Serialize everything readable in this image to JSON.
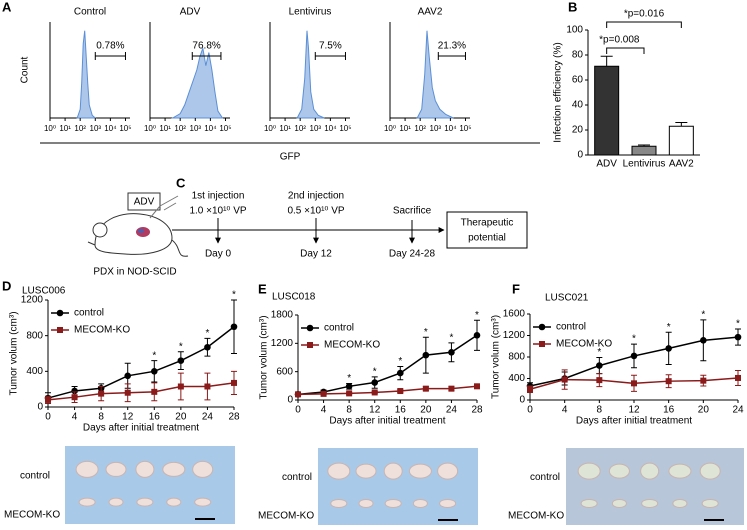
{
  "panel_labels": [
    "A",
    "B",
    "C",
    "D",
    "E",
    "F"
  ],
  "chart_data": [
    {
      "type": "histogram-curve",
      "title": "Control",
      "ylabel": "Count",
      "xlabel": "GFP",
      "color": "#5b8fd6",
      "x": [
        1.8,
        2.0,
        2.1,
        2.2,
        2.3,
        2.4,
        2.5,
        2.6,
        2.8,
        3.0
      ],
      "values": [
        0,
        10,
        40,
        85,
        100,
        70,
        40,
        15,
        3,
        0
      ],
      "xlim": [
        0,
        5.3
      ],
      "ylim": [
        0,
        110
      ],
      "xticks": [
        {
          "value": 0,
          "label": "10⁰"
        },
        {
          "value": 1,
          "label": "10¹"
        },
        {
          "value": 2,
          "label": "10²"
        },
        {
          "value": 3,
          "label": "10³"
        },
        {
          "value": 4,
          "label": "10⁴"
        },
        {
          "value": 5,
          "label": "10⁵"
        }
      ],
      "gate_range": [
        3.0,
        5.0
      ],
      "gate_value": 0.78,
      "gate_label": "0.78%"
    },
    {
      "type": "histogram-curve",
      "title": "ADV",
      "color": "#5b8fd6",
      "x": [
        1.5,
        2.0,
        2.3,
        2.6,
        2.9,
        3.1,
        3.3,
        3.5,
        3.7,
        3.9,
        4.1,
        4.3,
        4.5,
        4.8
      ],
      "values": [
        0,
        5,
        15,
        30,
        45,
        55,
        70,
        80,
        60,
        75,
        55,
        30,
        8,
        0
      ],
      "xlim": [
        0,
        5.3
      ],
      "ylim": [
        0,
        110
      ],
      "xticks": [
        {
          "value": 0,
          "label": "10⁰"
        },
        {
          "value": 1,
          "label": "10¹"
        },
        {
          "value": 2,
          "label": "10²"
        },
        {
          "value": 3,
          "label": "10³"
        },
        {
          "value": 4,
          "label": "10⁴"
        },
        {
          "value": 5,
          "label": "10⁵"
        }
      ],
      "gate_range": [
        2.8,
        4.7
      ],
      "gate_value": 76.8,
      "gate_label": "76.8%"
    },
    {
      "type": "histogram-curve",
      "title": "Lentivirus",
      "color": "#5b8fd6",
      "x": [
        1.8,
        2.1,
        2.3,
        2.45,
        2.55,
        2.7,
        2.9,
        3.2,
        3.6
      ],
      "values": [
        0,
        10,
        45,
        100,
        80,
        30,
        10,
        3,
        0
      ],
      "xlim": [
        0,
        5.3
      ],
      "ylim": [
        0,
        110
      ],
      "xticks": [
        {
          "value": 0,
          "label": "10⁰"
        },
        {
          "value": 1,
          "label": "10¹"
        },
        {
          "value": 2,
          "label": "10²"
        },
        {
          "value": 3,
          "label": "10³"
        },
        {
          "value": 4,
          "label": "10⁴"
        },
        {
          "value": 5,
          "label": "10⁵"
        }
      ],
      "gate_range": [
        3.0,
        5.0
      ],
      "gate_value": 7.5,
      "gate_label": "7.5%"
    },
    {
      "type": "histogram-curve",
      "title": "AAV2",
      "color": "#5b8fd6",
      "x": [
        1.8,
        2.1,
        2.3,
        2.45,
        2.6,
        2.8,
        3.0,
        3.3,
        3.7,
        4.2
      ],
      "values": [
        0,
        10,
        50,
        100,
        70,
        35,
        20,
        10,
        4,
        0
      ],
      "xlim": [
        0,
        5.3
      ],
      "ylim": [
        0,
        110
      ],
      "xticks": [
        {
          "value": 0,
          "label": "10⁰"
        },
        {
          "value": 1,
          "label": "10¹"
        },
        {
          "value": 2,
          "label": "10²"
        },
        {
          "value": 3,
          "label": "10³"
        },
        {
          "value": 4,
          "label": "10⁴"
        },
        {
          "value": 5,
          "label": "10⁵"
        }
      ],
      "gate_range": [
        3.2,
        5.0
      ],
      "gate_value": 21.3,
      "gate_label": "21.3%"
    },
    {
      "type": "bar",
      "ylabel": "Infection efficiency (%)",
      "categories": [
        "ADV",
        "Lentivirus",
        "AAV2"
      ],
      "values": [
        71,
        7,
        23
      ],
      "errors": [
        8,
        1,
        3
      ],
      "colors": [
        "#333333",
        "#888888",
        "#ffffff"
      ],
      "ylim": [
        0,
        100
      ],
      "yticks": [
        0,
        20,
        40,
        60,
        80,
        100
      ],
      "annotations": [
        "*p=0.008",
        "*p=0.016"
      ]
    },
    {
      "type": "line",
      "title": "LUSC006",
      "xlabel": "Days after initial treatment",
      "ylabel": "Tumor volum (cm³)",
      "x": [
        0,
        4,
        8,
        12,
        16,
        20,
        24,
        28
      ],
      "series": [
        {
          "name": "control",
          "color": "#000000",
          "marker": "circle",
          "values": [
            100,
            180,
            210,
            350,
            400,
            520,
            670,
            900
          ],
          "errors": [
            60,
            50,
            50,
            140,
            120,
            100,
            100,
            300
          ]
        },
        {
          "name": "MECOM-KO",
          "color": "#8b1a1a",
          "marker": "square",
          "values": [
            80,
            110,
            150,
            160,
            170,
            230,
            230,
            270
          ],
          "errors": [
            40,
            60,
            80,
            100,
            100,
            150,
            150,
            130
          ]
        }
      ],
      "xlim": [
        0,
        28
      ],
      "xticks": [
        0,
        4,
        8,
        12,
        16,
        20,
        24,
        28
      ],
      "ylim": [
        0,
        1200
      ],
      "yticks": [
        0,
        400,
        800,
        1200
      ],
      "significance_label": "*",
      "significance_x": [
        16,
        20,
        24,
        28
      ]
    },
    {
      "type": "line",
      "title": "LUSC018",
      "xlabel": "Days after initial treatment",
      "ylabel": "Tumor volum (cm³)",
      "x": [
        0,
        4,
        8,
        12,
        16,
        20,
        24,
        28
      ],
      "series": [
        {
          "name": "control",
          "color": "#000000",
          "marker": "circle",
          "values": [
            120,
            170,
            290,
            370,
            570,
            950,
            1010,
            1370
          ],
          "errors": [
            20,
            40,
            60,
            120,
            140,
            380,
            200,
            320
          ]
        },
        {
          "name": "MECOM-KO",
          "color": "#8b1a1a",
          "marker": "square",
          "values": [
            120,
            130,
            140,
            160,
            190,
            240,
            240,
            290
          ],
          "errors": [
            20,
            20,
            20,
            20,
            30,
            40,
            40,
            40
          ]
        }
      ],
      "xlim": [
        0,
        28
      ],
      "xticks": [
        0,
        4,
        8,
        12,
        16,
        20,
        24,
        28
      ],
      "ylim": [
        0,
        1800
      ],
      "yticks": [
        0,
        600,
        1200,
        1800
      ],
      "significance_label": "*",
      "significance_x": [
        8,
        12,
        16,
        20,
        24,
        28
      ]
    },
    {
      "type": "line",
      "title": "LUSC021",
      "xlabel": "Days after initial treatment",
      "ylabel": "Tumor volum (cm³)",
      "x": [
        0,
        4,
        8,
        12,
        16,
        20,
        24
      ],
      "series": [
        {
          "name": "control",
          "color": "#000000",
          "marker": "circle",
          "values": [
            260,
            400,
            640,
            820,
            960,
            1110,
            1170
          ],
          "errors": [
            60,
            120,
            150,
            220,
            300,
            380,
            150
          ]
        },
        {
          "name": "MECOM-KO",
          "color": "#8b1a1a",
          "marker": "square",
          "values": [
            200,
            380,
            370,
            310,
            350,
            360,
            410
          ],
          "errors": [
            60,
            180,
            120,
            150,
            120,
            100,
            140
          ]
        }
      ],
      "xlim": [
        0,
        24
      ],
      "xticks": [
        0,
        4,
        8,
        12,
        16,
        20,
        24
      ],
      "ylim": [
        0,
        1600
      ],
      "yticks": [
        0,
        400,
        800,
        1200,
        1600
      ],
      "significance_label": "*",
      "significance_x": [
        8,
        12,
        16,
        20,
        24
      ]
    }
  ],
  "schematic": {
    "vector": "ADV",
    "host": "PDX in NOD-SCID",
    "steps": [
      {
        "title": "1st injection",
        "dose": "1.0 ×10¹⁰ VP",
        "day": "Day 0"
      },
      {
        "title": "2nd injection",
        "dose": "0.5 ×10¹⁰ VP",
        "day": "Day 12"
      },
      {
        "title": "Sacrifice",
        "day": "Day 24-28"
      }
    ],
    "outcome": [
      "Therapeutic",
      "potential"
    ]
  },
  "photos": [
    {
      "rows": [
        "control",
        "MECOM-KO"
      ]
    },
    {
      "rows": [
        "control",
        "MECOM-KO"
      ]
    },
    {
      "rows": [
        "control",
        "MECOM-KO"
      ]
    }
  ]
}
